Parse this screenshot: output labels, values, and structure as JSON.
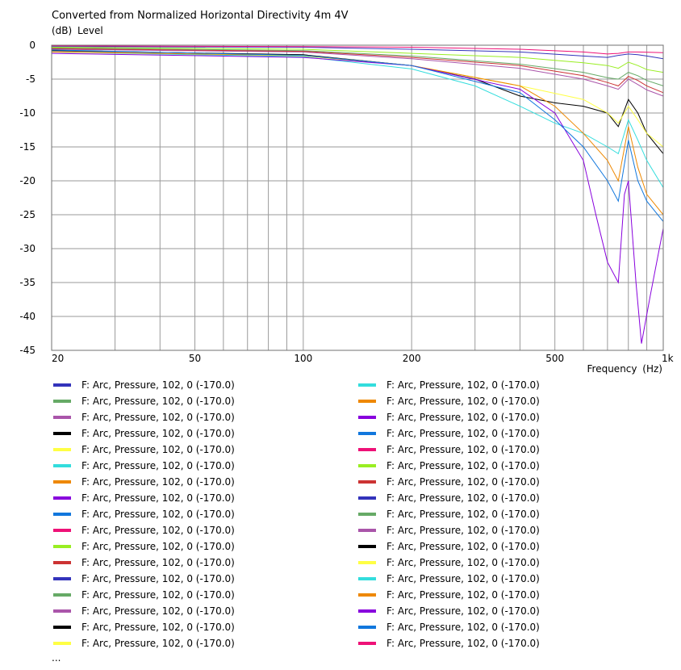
{
  "chart_data": {
    "type": "line",
    "title": "Converted from Normalized Horizontal Directivity 4m 4V",
    "ylabel": "(dB)  Level",
    "xlabel": "Frequency  (Hz)",
    "xscale": "log",
    "xlim": [
      20,
      1000
    ],
    "ylim": [
      -45,
      0
    ],
    "x_ticks": [
      20,
      50,
      100,
      200,
      500,
      1000
    ],
    "x_tick_labels": [
      "20",
      "50",
      "100",
      "200",
      "500",
      "1k"
    ],
    "y_ticks": [
      0,
      -5,
      -10,
      -15,
      -20,
      -25,
      -30,
      -35,
      -40,
      -45
    ],
    "grid": true,
    "legend_position": "bottom",
    "legend_more": "...",
    "series": [
      {
        "label": "F: Arc, Pressure, 102, 0 (-170.0)",
        "color": "#3333bb",
        "points": [
          [
            20,
            -0.2
          ],
          [
            100,
            -0.3
          ],
          [
            200,
            -0.6
          ],
          [
            400,
            -1
          ],
          [
            600,
            -1.6
          ],
          [
            700,
            -1.8
          ],
          [
            750,
            -1.5
          ],
          [
            800,
            -1.3
          ],
          [
            850,
            -1.4
          ],
          [
            900,
            -1.6
          ],
          [
            1000,
            -2
          ]
        ]
      },
      {
        "label": "F: Arc, Pressure, 102, 0 (-170.0)",
        "color": "#66aa66",
        "points": [
          [
            20,
            -0.4
          ],
          [
            100,
            -0.8
          ],
          [
            200,
            -1.6
          ],
          [
            400,
            -2.8
          ],
          [
            600,
            -4
          ],
          [
            700,
            -4.8
          ],
          [
            750,
            -5
          ],
          [
            800,
            -4
          ],
          [
            850,
            -4.5
          ],
          [
            900,
            -5.2
          ],
          [
            1000,
            -6
          ]
        ]
      },
      {
        "label": "F: Arc, Pressure, 102, 0 (-170.0)",
        "color": "#aa55aa",
        "points": [
          [
            20,
            -0.6
          ],
          [
            100,
            -1
          ],
          [
            200,
            -2
          ],
          [
            400,
            -3.4
          ],
          [
            600,
            -5
          ],
          [
            700,
            -6
          ],
          [
            750,
            -6.5
          ],
          [
            800,
            -5
          ],
          [
            850,
            -5.8
          ],
          [
            900,
            -6.6
          ],
          [
            1000,
            -7.5
          ]
        ]
      },
      {
        "label": "F: Arc, Pressure, 102, 0 (-170.0)",
        "color": "#000000",
        "points": [
          [
            20,
            -0.8
          ],
          [
            100,
            -1.4
          ],
          [
            200,
            -3
          ],
          [
            300,
            -5
          ],
          [
            400,
            -7.5
          ],
          [
            500,
            -8.5
          ],
          [
            600,
            -9
          ],
          [
            700,
            -10
          ],
          [
            750,
            -12
          ],
          [
            800,
            -8
          ],
          [
            850,
            -10
          ],
          [
            900,
            -13
          ],
          [
            1000,
            -16
          ]
        ]
      },
      {
        "label": "F: Arc, Pressure, 102, 0 (-170.0)",
        "color": "#ffff44",
        "points": [
          [
            20,
            -1
          ],
          [
            100,
            -1.6
          ],
          [
            200,
            -3
          ],
          [
            400,
            -6
          ],
          [
            600,
            -8
          ],
          [
            700,
            -10
          ],
          [
            750,
            -11.5
          ],
          [
            800,
            -9
          ],
          [
            850,
            -11
          ],
          [
            900,
            -13
          ],
          [
            1000,
            -15
          ]
        ]
      },
      {
        "label": "F: Arc, Pressure, 102, 0 (-170.0)",
        "color": "#33dddd",
        "points": [
          [
            20,
            -1
          ],
          [
            100,
            -1.7
          ],
          [
            200,
            -3.5
          ],
          [
            300,
            -6
          ],
          [
            400,
            -9
          ],
          [
            500,
            -11.5
          ],
          [
            600,
            -13
          ],
          [
            700,
            -15
          ],
          [
            750,
            -16
          ],
          [
            800,
            -11
          ],
          [
            850,
            -14
          ],
          [
            900,
            -17
          ],
          [
            1000,
            -21
          ]
        ]
      },
      {
        "label": "F: Arc, Pressure, 102, 0 (-170.0)",
        "color": "#ee8800",
        "points": [
          [
            20,
            -1
          ],
          [
            100,
            -1.5
          ],
          [
            200,
            -3
          ],
          [
            400,
            -6
          ],
          [
            500,
            -9
          ],
          [
            600,
            -13
          ],
          [
            700,
            -17
          ],
          [
            750,
            -20
          ],
          [
            800,
            -12
          ],
          [
            850,
            -18
          ],
          [
            900,
            -22
          ],
          [
            1000,
            -25
          ]
        ]
      },
      {
        "label": "F: Arc, Pressure, 102, 0 (-170.0)",
        "color": "#8800dd",
        "points": [
          [
            20,
            -1.2
          ],
          [
            100,
            -1.8
          ],
          [
            200,
            -3
          ],
          [
            400,
            -6.5
          ],
          [
            500,
            -10
          ],
          [
            600,
            -17
          ],
          [
            650,
            -25
          ],
          [
            700,
            -32
          ],
          [
            750,
            -35
          ],
          [
            780,
            -22
          ],
          [
            800,
            -20
          ],
          [
            840,
            -35
          ],
          [
            870,
            -44
          ],
          [
            920,
            -37
          ],
          [
            1000,
            -27
          ]
        ]
      },
      {
        "label": "F: Arc, Pressure, 102, 0 (-170.0)",
        "color": "#1177dd",
        "points": [
          [
            20,
            -0.7
          ],
          [
            100,
            -1.5
          ],
          [
            200,
            -3
          ],
          [
            400,
            -7
          ],
          [
            500,
            -11
          ],
          [
            600,
            -15
          ],
          [
            700,
            -20
          ],
          [
            750,
            -23
          ],
          [
            800,
            -14
          ],
          [
            850,
            -20
          ],
          [
            900,
            -23
          ],
          [
            1000,
            -26
          ]
        ]
      },
      {
        "label": "F: Arc, Pressure, 102, 0 (-170.0)",
        "color": "#ee1177",
        "points": [
          [
            20,
            -0.1
          ],
          [
            100,
            -0.2
          ],
          [
            200,
            -0.3
          ],
          [
            400,
            -0.6
          ],
          [
            600,
            -1
          ],
          [
            700,
            -1.3
          ],
          [
            750,
            -1.2
          ],
          [
            800,
            -1
          ],
          [
            850,
            -1
          ],
          [
            1000,
            -1.1
          ]
        ]
      },
      {
        "label": "F: Arc, Pressure, 102, 0 (-170.0)",
        "color": "#99ee22",
        "points": [
          [
            20,
            -0.3
          ],
          [
            100,
            -0.6
          ],
          [
            200,
            -1.2
          ],
          [
            400,
            -1.8
          ],
          [
            600,
            -2.6
          ],
          [
            700,
            -3
          ],
          [
            750,
            -3.4
          ],
          [
            800,
            -2.5
          ],
          [
            850,
            -3
          ],
          [
            900,
            -3.6
          ],
          [
            1000,
            -4
          ]
        ]
      },
      {
        "label": "F: Arc, Pressure, 102, 0 (-170.0)",
        "color": "#cc3333",
        "points": [
          [
            20,
            -0.5
          ],
          [
            100,
            -0.9
          ],
          [
            200,
            -1.8
          ],
          [
            400,
            -3
          ],
          [
            600,
            -4.5
          ],
          [
            700,
            -5.5
          ],
          [
            750,
            -6
          ],
          [
            800,
            -4.6
          ],
          [
            850,
            -5.2
          ],
          [
            900,
            -6
          ],
          [
            1000,
            -7
          ]
        ]
      }
    ]
  },
  "legend": {
    "more": "...",
    "items": [
      {
        "label": "F: Arc, Pressure, 102, 0 (-170.0)",
        "color": "#3333bb"
      },
      {
        "label": "F: Arc, Pressure, 102, 0 (-170.0)",
        "color": "#66aa66"
      },
      {
        "label": "F: Arc, Pressure, 102, 0 (-170.0)",
        "color": "#aa55aa"
      },
      {
        "label": "F: Arc, Pressure, 102, 0 (-170.0)",
        "color": "#000000"
      },
      {
        "label": "F: Arc, Pressure, 102, 0 (-170.0)",
        "color": "#ffff44"
      },
      {
        "label": "F: Arc, Pressure, 102, 0 (-170.0)",
        "color": "#33dddd"
      },
      {
        "label": "F: Arc, Pressure, 102, 0 (-170.0)",
        "color": "#ee8800"
      },
      {
        "label": "F: Arc, Pressure, 102, 0 (-170.0)",
        "color": "#8800dd"
      },
      {
        "label": "F: Arc, Pressure, 102, 0 (-170.0)",
        "color": "#1177dd"
      },
      {
        "label": "F: Arc, Pressure, 102, 0 (-170.0)",
        "color": "#ee1177"
      },
      {
        "label": "F: Arc, Pressure, 102, 0 (-170.0)",
        "color": "#99ee22"
      },
      {
        "label": "F: Arc, Pressure, 102, 0 (-170.0)",
        "color": "#cc3333"
      },
      {
        "label": "F: Arc, Pressure, 102, 0 (-170.0)",
        "color": "#3333bb"
      },
      {
        "label": "F: Arc, Pressure, 102, 0 (-170.0)",
        "color": "#66aa66"
      },
      {
        "label": "F: Arc, Pressure, 102, 0 (-170.0)",
        "color": "#aa55aa"
      },
      {
        "label": "F: Arc, Pressure, 102, 0 (-170.0)",
        "color": "#000000"
      },
      {
        "label": "F: Arc, Pressure, 102, 0 (-170.0)",
        "color": "#ffff44"
      },
      {
        "label": "F: Arc, Pressure, 102, 0 (-170.0)",
        "color": "#33dddd"
      },
      {
        "label": "F: Arc, Pressure, 102, 0 (-170.0)",
        "color": "#ee8800"
      },
      {
        "label": "F: Arc, Pressure, 102, 0 (-170.0)",
        "color": "#8800dd"
      },
      {
        "label": "F: Arc, Pressure, 102, 0 (-170.0)",
        "color": "#1177dd"
      },
      {
        "label": "F: Arc, Pressure, 102, 0 (-170.0)",
        "color": "#ee1177"
      },
      {
        "label": "F: Arc, Pressure, 102, 0 (-170.0)",
        "color": "#99ee22"
      },
      {
        "label": "F: Arc, Pressure, 102, 0 (-170.0)",
        "color": "#cc3333"
      },
      {
        "label": "F: Arc, Pressure, 102, 0 (-170.0)",
        "color": "#3333bb"
      },
      {
        "label": "F: Arc, Pressure, 102, 0 (-170.0)",
        "color": "#66aa66"
      },
      {
        "label": "F: Arc, Pressure, 102, 0 (-170.0)",
        "color": "#aa55aa"
      },
      {
        "label": "F: Arc, Pressure, 102, 0 (-170.0)",
        "color": "#000000"
      },
      {
        "label": "F: Arc, Pressure, 102, 0 (-170.0)",
        "color": "#ffff44"
      },
      {
        "label": "F: Arc, Pressure, 102, 0 (-170.0)",
        "color": "#33dddd"
      },
      {
        "label": "F: Arc, Pressure, 102, 0 (-170.0)",
        "color": "#ee8800"
      },
      {
        "label": "F: Arc, Pressure, 102, 0 (-170.0)",
        "color": "#8800dd"
      },
      {
        "label": "F: Arc, Pressure, 102, 0 (-170.0)",
        "color": "#1177dd"
      },
      {
        "label": "F: Arc, Pressure, 102, 0 (-170.0)",
        "color": "#ee1177"
      }
    ]
  }
}
